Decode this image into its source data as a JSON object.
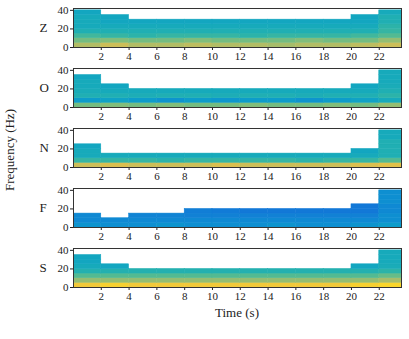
{
  "chart_data": {
    "type": "heatmap",
    "xlabel": "Time (s)",
    "ylabel": "Frequency (Hz)",
    "xlim": [
      0,
      23.6
    ],
    "xticks": [
      2,
      4,
      6,
      8,
      10,
      12,
      14,
      16,
      18,
      20,
      22
    ],
    "ylim": [
      0,
      42
    ],
    "yticks": [
      0,
      20,
      40
    ],
    "color_range": [
      0,
      1
    ],
    "time_bins": [
      0,
      2,
      4,
      6,
      8,
      10,
      12,
      14,
      16,
      18,
      20,
      22,
      23.6
    ],
    "freq_bins": [
      0,
      5,
      10,
      15,
      20,
      25,
      30,
      35,
      40
    ],
    "panels": [
      {
        "label": "Z",
        "cells": [
          [
            0.7,
            0.75,
            0.7,
            0.7,
            0.72,
            0.7,
            0.7,
            0.68,
            0.7,
            0.7,
            0.72,
            0.75
          ],
          [
            0.6,
            0.62,
            0.6,
            0.6,
            0.62,
            0.6,
            0.6,
            0.6,
            0.62,
            0.6,
            0.6,
            0.65
          ],
          [
            0.52,
            0.5,
            0.48,
            0.5,
            0.5,
            0.5,
            0.48,
            0.5,
            0.5,
            0.5,
            0.52,
            0.55
          ],
          [
            0.45,
            0.45,
            0.45,
            0.45,
            0.45,
            0.45,
            0.45,
            0.45,
            0.45,
            0.45,
            0.45,
            0.5
          ],
          [
            0.42,
            0.42,
            0.42,
            0.42,
            0.42,
            0.42,
            0.42,
            0.42,
            0.42,
            0.42,
            0.42,
            0.48
          ],
          [
            0.42,
            0.4,
            0.4,
            0.4,
            0.4,
            0.4,
            0.4,
            0.4,
            0.4,
            0.4,
            0.4,
            0.45
          ],
          [
            0.42,
            0.4,
            null,
            null,
            null,
            null,
            null,
            null,
            null,
            null,
            0.4,
            0.45
          ],
          [
            0.4,
            null,
            null,
            null,
            null,
            null,
            null,
            null,
            null,
            null,
            null,
            0.42
          ]
        ]
      },
      {
        "label": "O",
        "cells": [
          [
            0.6,
            0.62,
            0.6,
            0.62,
            0.6,
            0.6,
            0.62,
            0.6,
            0.6,
            0.62,
            0.6,
            0.65
          ],
          [
            0.35,
            0.38,
            0.35,
            0.32,
            0.35,
            0.33,
            0.35,
            0.35,
            0.32,
            0.35,
            0.38,
            0.42
          ],
          [
            0.45,
            0.45,
            0.44,
            0.45,
            0.45,
            0.44,
            0.45,
            0.45,
            0.44,
            0.45,
            0.45,
            0.48
          ],
          [
            0.43,
            0.42,
            0.42,
            0.42,
            0.42,
            0.42,
            0.42,
            0.42,
            0.42,
            0.42,
            0.42,
            0.45
          ],
          [
            0.42,
            0.4,
            null,
            null,
            null,
            null,
            null,
            null,
            null,
            null,
            0.4,
            0.43
          ],
          [
            0.42,
            null,
            null,
            null,
            null,
            null,
            null,
            null,
            null,
            null,
            null,
            0.42
          ],
          [
            0.4,
            null,
            null,
            null,
            null,
            null,
            null,
            null,
            null,
            null,
            null,
            0.42
          ],
          [
            null,
            null,
            null,
            null,
            null,
            null,
            null,
            null,
            null,
            null,
            null,
            0.42
          ]
        ]
      },
      {
        "label": "N",
        "cells": [
          [
            0.75,
            0.78,
            0.75,
            0.75,
            0.75,
            0.78,
            0.75,
            0.75,
            0.75,
            0.75,
            0.78,
            0.8
          ],
          [
            0.5,
            0.5,
            0.5,
            0.48,
            0.5,
            0.5,
            0.5,
            0.5,
            0.48,
            0.5,
            0.5,
            0.55
          ],
          [
            0.42,
            0.42,
            0.42,
            0.42,
            0.42,
            0.42,
            0.42,
            0.42,
            0.42,
            0.42,
            0.42,
            0.45
          ],
          [
            0.42,
            null,
            null,
            null,
            null,
            null,
            null,
            null,
            null,
            null,
            0.4,
            0.45
          ],
          [
            0.4,
            null,
            null,
            null,
            null,
            null,
            null,
            null,
            null,
            null,
            null,
            0.45
          ],
          [
            null,
            null,
            null,
            null,
            null,
            null,
            null,
            null,
            null,
            null,
            null,
            0.45
          ],
          [
            null,
            null,
            null,
            null,
            null,
            null,
            null,
            null,
            null,
            null,
            null,
            0.42
          ],
          [
            null,
            null,
            null,
            null,
            null,
            null,
            null,
            null,
            null,
            null,
            null,
            0.42
          ]
        ]
      },
      {
        "label": "F",
        "cells": [
          [
            0.32,
            0.3,
            0.3,
            0.32,
            0.3,
            0.3,
            0.3,
            0.32,
            0.3,
            0.3,
            0.32,
            0.35
          ],
          [
            0.28,
            0.28,
            0.28,
            0.28,
            0.28,
            0.28,
            0.28,
            0.28,
            0.28,
            0.28,
            0.28,
            0.3
          ],
          [
            0.28,
            null,
            0.26,
            0.26,
            0.25,
            0.25,
            0.25,
            0.25,
            0.25,
            0.25,
            0.25,
            0.3
          ],
          [
            null,
            null,
            null,
            null,
            0.24,
            0.23,
            0.22,
            0.22,
            0.22,
            0.22,
            0.22,
            0.28
          ],
          [
            null,
            null,
            null,
            null,
            null,
            null,
            null,
            null,
            null,
            null,
            0.22,
            0.28
          ],
          [
            null,
            null,
            null,
            null,
            null,
            null,
            null,
            null,
            null,
            null,
            null,
            0.3
          ],
          [
            null,
            null,
            null,
            null,
            null,
            null,
            null,
            null,
            null,
            null,
            null,
            0.3
          ],
          [
            null,
            null,
            null,
            null,
            null,
            null,
            null,
            null,
            null,
            null,
            null,
            0.3
          ]
        ]
      },
      {
        "label": "S",
        "cells": [
          [
            0.85,
            0.88,
            0.85,
            0.85,
            0.85,
            0.85,
            0.85,
            0.85,
            0.85,
            0.85,
            0.88,
            0.9
          ],
          [
            0.65,
            0.65,
            0.65,
            0.65,
            0.65,
            0.65,
            0.65,
            0.65,
            0.65,
            0.65,
            0.65,
            0.68
          ],
          [
            0.55,
            0.55,
            0.55,
            0.55,
            0.55,
            0.55,
            0.55,
            0.55,
            0.55,
            0.55,
            0.55,
            0.58
          ],
          [
            0.46,
            0.46,
            0.46,
            0.46,
            0.46,
            0.46,
            0.46,
            0.46,
            0.46,
            0.46,
            0.46,
            0.48
          ],
          [
            0.42,
            0.4,
            null,
            null,
            null,
            null,
            null,
            null,
            null,
            null,
            0.4,
            0.43
          ],
          [
            0.4,
            null,
            null,
            null,
            null,
            null,
            null,
            null,
            null,
            null,
            null,
            0.42
          ],
          [
            0.4,
            null,
            null,
            null,
            null,
            null,
            null,
            null,
            null,
            null,
            null,
            0.42
          ],
          [
            null,
            null,
            null,
            null,
            null,
            null,
            null,
            null,
            null,
            null,
            null,
            0.42
          ]
        ]
      }
    ]
  }
}
